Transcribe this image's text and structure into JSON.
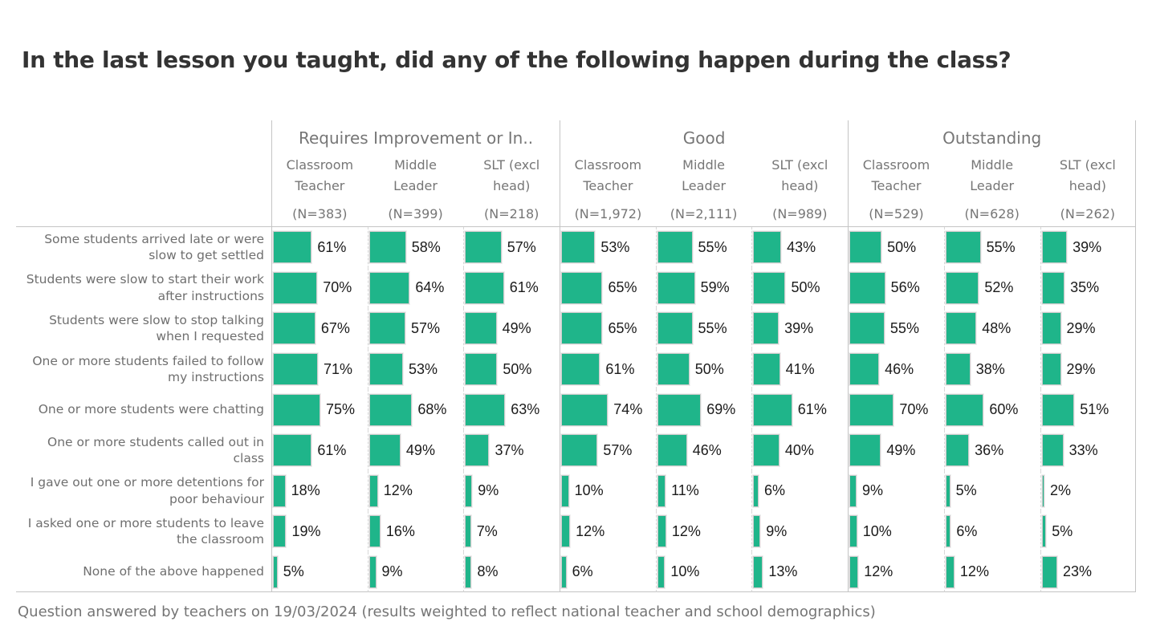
{
  "chart_data": {
    "type": "bar",
    "orientation": "horizontal",
    "title": "In the last lesson you taught, did any of the following happen during the class?",
    "footnote": "Question answered by  teachers on 19/03/2024 (results weighted to reflect national teacher and school demographics)",
    "value_format": "percent",
    "xlim": [
      0,
      100
    ],
    "bar_color": "#1FB58A",
    "legend": "none",
    "groups": [
      {
        "label": "Requires Improvement or In..",
        "columns": [
          {
            "role": "Classroom Teacher",
            "n_label": "(N=383)"
          },
          {
            "role": "Middle Leader",
            "n_label": "(N=399)"
          },
          {
            "role": "SLT (excl head)",
            "n_label": "(N=218)"
          }
        ]
      },
      {
        "label": "Good",
        "columns": [
          {
            "role": "Classroom Teacher",
            "n_label": "(N=1,972)"
          },
          {
            "role": "Middle Leader",
            "n_label": "(N=2,111)"
          },
          {
            "role": "SLT (excl head)",
            "n_label": "(N=989)"
          }
        ]
      },
      {
        "label": "Outstanding",
        "columns": [
          {
            "role": "Classroom Teacher",
            "n_label": "(N=529)"
          },
          {
            "role": "Middle Leader",
            "n_label": "(N=628)"
          },
          {
            "role": "SLT (excl head)",
            "n_label": "(N=262)"
          }
        ]
      }
    ],
    "rows": [
      {
        "label": "Some students arrived late or were slow to get settled",
        "values": [
          61,
          58,
          57,
          53,
          55,
          43,
          50,
          55,
          39
        ]
      },
      {
        "label": "Students were slow to start their work after instructions",
        "values": [
          70,
          64,
          61,
          65,
          59,
          50,
          56,
          52,
          35
        ]
      },
      {
        "label": "Students were slow to stop talking when I requested",
        "values": [
          67,
          57,
          49,
          65,
          55,
          39,
          55,
          48,
          29
        ]
      },
      {
        "label": "One or more students failed to follow my instructions",
        "values": [
          71,
          53,
          50,
          61,
          50,
          41,
          46,
          38,
          29
        ]
      },
      {
        "label": "One or more students were chatting",
        "values": [
          75,
          68,
          63,
          74,
          69,
          61,
          70,
          60,
          51
        ]
      },
      {
        "label": "One or more students called out in class",
        "values": [
          61,
          49,
          37,
          57,
          46,
          40,
          49,
          36,
          33
        ]
      },
      {
        "label": "I gave out one or more detentions for poor behaviour",
        "values": [
          18,
          12,
          9,
          10,
          11,
          6,
          9,
          5,
          2
        ]
      },
      {
        "label": "I asked one or more students to leave the classroom",
        "values": [
          19,
          16,
          7,
          12,
          12,
          9,
          10,
          6,
          5
        ]
      },
      {
        "label": "None of the above happened",
        "values": [
          5,
          9,
          8,
          6,
          10,
          13,
          12,
          12,
          23
        ]
      }
    ]
  }
}
